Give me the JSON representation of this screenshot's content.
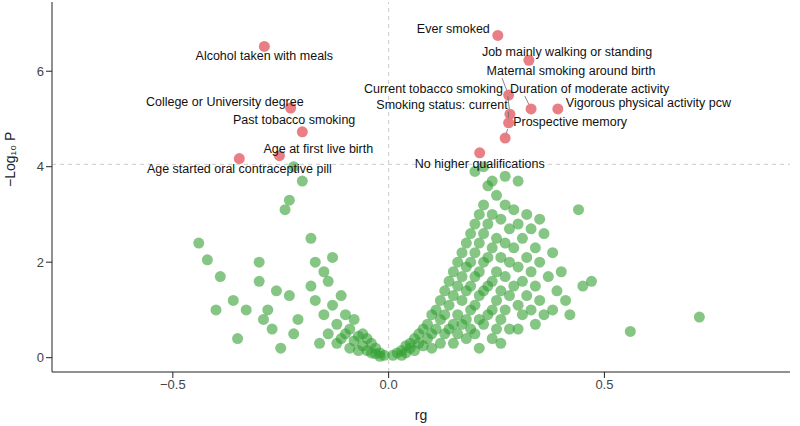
{
  "chart_data": {
    "type": "scatter",
    "xlabel": "rg",
    "ylabel": "−Log₁₀ P",
    "xlim": [
      -0.78,
      0.93
    ],
    "ylim": [
      -0.3,
      7.45
    ],
    "xticks": [
      {
        "value": -0.5,
        "label": "−0.5"
      },
      {
        "value": 0,
        "label": "0.0"
      },
      0.5
    ],
    "yticks": [
      0,
      2,
      4,
      6
    ],
    "hline": 4.05,
    "vline": 0,
    "marker": "circle",
    "series": [
      {
        "color": "#33a033",
        "points": [
          [
            -0.44,
            2.4
          ],
          [
            -0.42,
            2.05
          ],
          [
            -0.39,
            1.7
          ],
          [
            -0.4,
            1.0
          ],
          [
            -0.36,
            1.2
          ],
          [
            -0.35,
            0.4
          ],
          [
            -0.33,
            1.0
          ],
          [
            -0.3,
            2.0
          ],
          [
            -0.3,
            1.6
          ],
          [
            -0.29,
            0.8
          ],
          [
            -0.28,
            1.0
          ],
          [
            -0.27,
            0.6
          ],
          [
            -0.26,
            1.4
          ],
          [
            -0.25,
            0.2
          ],
          [
            -0.24,
            3.1
          ],
          [
            -0.23,
            3.3
          ],
          [
            -0.23,
            1.3
          ],
          [
            -0.22,
            0.5
          ],
          [
            -0.21,
            0.8
          ],
          [
            -0.2,
            3.7
          ],
          [
            -0.22,
            4.0
          ],
          [
            -0.18,
            2.5
          ],
          [
            -0.18,
            1.5
          ],
          [
            -0.17,
            2.0
          ],
          [
            -0.17,
            1.2
          ],
          [
            -0.16,
            0.3
          ],
          [
            -0.15,
            1.8
          ],
          [
            -0.15,
            0.9
          ],
          [
            -0.14,
            1.6
          ],
          [
            -0.14,
            0.5
          ],
          [
            -0.13,
            2.1
          ],
          [
            -0.13,
            1.1
          ],
          [
            -0.12,
            0.7
          ],
          [
            -0.12,
            0.3
          ],
          [
            -0.11,
            1.3
          ],
          [
            -0.1,
            0.9
          ],
          [
            -0.1,
            0.5
          ],
          [
            -0.09,
            0.6
          ],
          [
            -0.08,
            0.35
          ],
          [
            -0.08,
            0.8
          ],
          [
            -0.07,
            0.45
          ],
          [
            -0.06,
            0.25
          ],
          [
            -0.05,
            0.4
          ],
          [
            -0.05,
            0.15
          ],
          [
            -0.04,
            0.3
          ],
          [
            -0.03,
            0.2
          ],
          [
            -0.03,
            0.08
          ],
          [
            -0.02,
            0.1
          ],
          [
            -0.01,
            0.05
          ],
          [
            -0.02,
            0.03
          ],
          [
            -0.06,
            0.5
          ],
          [
            -0.09,
            0.2
          ],
          [
            -0.11,
            0.4
          ],
          [
            -0.07,
            0.15
          ],
          [
            -0.04,
            0.1
          ],
          [
            0.01,
            0.05
          ],
          [
            0.02,
            0.1
          ],
          [
            0.03,
            0.15
          ],
          [
            0.03,
            0.05
          ],
          [
            0.04,
            0.25
          ],
          [
            0.04,
            0.1
          ],
          [
            0.05,
            0.3
          ],
          [
            0.05,
            0.2
          ],
          [
            0.06,
            0.4
          ],
          [
            0.06,
            0.15
          ],
          [
            0.07,
            0.5
          ],
          [
            0.07,
            0.3
          ],
          [
            0.08,
            0.6
          ],
          [
            0.08,
            0.25
          ],
          [
            0.09,
            0.7
          ],
          [
            0.09,
            0.4
          ],
          [
            0.1,
            0.9
          ],
          [
            0.1,
            0.5
          ],
          [
            0.1,
            0.2
          ],
          [
            0.11,
            1.0
          ],
          [
            0.11,
            0.6
          ],
          [
            0.12,
            1.2
          ],
          [
            0.12,
            0.8
          ],
          [
            0.12,
            0.3
          ],
          [
            0.13,
            1.4
          ],
          [
            0.13,
            0.9
          ],
          [
            0.13,
            0.5
          ],
          [
            0.14,
            1.6
          ],
          [
            0.14,
            1.1
          ],
          [
            0.14,
            0.6
          ],
          [
            0.15,
            1.8
          ],
          [
            0.15,
            1.3
          ],
          [
            0.15,
            0.7
          ],
          [
            0.15,
            0.3
          ],
          [
            0.16,
            2.0
          ],
          [
            0.16,
            1.5
          ],
          [
            0.16,
            0.9
          ],
          [
            0.16,
            0.5
          ],
          [
            0.17,
            2.2
          ],
          [
            0.17,
            1.7
          ],
          [
            0.17,
            1.2
          ],
          [
            0.17,
            0.7
          ],
          [
            0.18,
            2.4
          ],
          [
            0.18,
            1.9
          ],
          [
            0.18,
            1.4
          ],
          [
            0.18,
            0.8
          ],
          [
            0.18,
            0.4
          ],
          [
            0.19,
            2.6
          ],
          [
            0.19,
            2.0
          ],
          [
            0.19,
            1.5
          ],
          [
            0.19,
            1.0
          ],
          [
            0.19,
            0.6
          ],
          [
            0.2,
            2.8
          ],
          [
            0.2,
            2.2
          ],
          [
            0.2,
            1.7
          ],
          [
            0.2,
            1.1
          ],
          [
            0.2,
            0.5
          ],
          [
            0.21,
            3.0
          ],
          [
            0.21,
            2.4
          ],
          [
            0.21,
            1.8
          ],
          [
            0.21,
            1.3
          ],
          [
            0.21,
            0.8
          ],
          [
            0.22,
            3.2
          ],
          [
            0.22,
            2.6
          ],
          [
            0.22,
            2.0
          ],
          [
            0.22,
            1.4
          ],
          [
            0.22,
            0.7
          ],
          [
            0.23,
            3.6
          ],
          [
            0.23,
            2.8
          ],
          [
            0.23,
            2.1
          ],
          [
            0.23,
            1.5
          ],
          [
            0.23,
            0.9
          ],
          [
            0.24,
            3.0
          ],
          [
            0.24,
            2.3
          ],
          [
            0.24,
            1.6
          ],
          [
            0.24,
            1.0
          ],
          [
            0.24,
            0.4
          ],
          [
            0.25,
            3.4
          ],
          [
            0.25,
            2.5
          ],
          [
            0.25,
            1.8
          ],
          [
            0.25,
            1.2
          ],
          [
            0.25,
            0.6
          ],
          [
            0.26,
            2.9
          ],
          [
            0.26,
            2.1
          ],
          [
            0.26,
            1.4
          ],
          [
            0.26,
            0.8
          ],
          [
            0.27,
            3.2
          ],
          [
            0.27,
            2.4
          ],
          [
            0.27,
            1.7
          ],
          [
            0.27,
            1.0
          ],
          [
            0.28,
            2.7
          ],
          [
            0.28,
            2.0
          ],
          [
            0.28,
            1.3
          ],
          [
            0.28,
            0.6
          ],
          [
            0.29,
            3.1
          ],
          [
            0.29,
            2.3
          ],
          [
            0.29,
            1.5
          ],
          [
            0.3,
            3.7
          ],
          [
            0.3,
            2.8
          ],
          [
            0.3,
            1.9
          ],
          [
            0.3,
            1.1
          ],
          [
            0.31,
            2.5
          ],
          [
            0.31,
            1.6
          ],
          [
            0.31,
            0.9
          ],
          [
            0.32,
            3.0
          ],
          [
            0.32,
            2.1
          ],
          [
            0.32,
            1.3
          ],
          [
            0.33,
            2.7
          ],
          [
            0.33,
            1.8
          ],
          [
            0.33,
            1.0
          ],
          [
            0.34,
            2.3
          ],
          [
            0.34,
            1.5
          ],
          [
            0.35,
            2.9
          ],
          [
            0.35,
            2.0
          ],
          [
            0.35,
            1.2
          ],
          [
            0.36,
            2.6
          ],
          [
            0.36,
            0.9
          ],
          [
            0.37,
            1.7
          ],
          [
            0.38,
            2.2
          ],
          [
            0.38,
            1.0
          ],
          [
            0.39,
            1.4
          ],
          [
            0.4,
            1.8
          ],
          [
            0.41,
            1.2
          ],
          [
            0.42,
            0.9
          ],
          [
            0.44,
            3.1
          ],
          [
            0.45,
            1.5
          ],
          [
            0.47,
            1.6
          ],
          [
            0.56,
            0.55
          ],
          [
            0.72,
            0.85
          ],
          [
            0.22,
            4.0
          ],
          [
            0.27,
            3.8
          ],
          [
            0.2,
            3.9
          ],
          [
            0.3,
            0.6
          ],
          [
            0.34,
            0.7
          ],
          [
            0.26,
            0.3
          ],
          [
            0.21,
            0.2
          ],
          [
            0.24,
            3.7
          ]
        ]
      },
      {
        "color": "#e8777d",
        "points": [
          [
            -0.288,
            6.52
          ],
          [
            -0.227,
            5.23
          ],
          [
            -0.2,
            4.73
          ],
          [
            -0.253,
            4.23
          ],
          [
            -0.346,
            4.17
          ],
          [
            0.253,
            6.75
          ],
          [
            0.325,
            6.23
          ],
          [
            0.278,
            5.5
          ],
          [
            0.281,
            5.1
          ],
          [
            0.33,
            5.21
          ],
          [
            0.392,
            5.21
          ],
          [
            0.278,
            4.92
          ],
          [
            0.27,
            4.6
          ],
          [
            0.211,
            4.29
          ]
        ],
        "labels": [
          "Alcohol taken with meals",
          "College or University degree",
          "Past tobacco smoking",
          "Age at first live birth",
          "Age started oral contraceptive pill",
          "Ever smoked",
          "Job mainly walking or standing",
          "Maternal smoking around birth",
          "Current tobacco smoking",
          "Duration of moderate activity",
          "Vigorous physical activity pcw",
          "Smoking status: current",
          "Prospective memory",
          "No higher qualifications"
        ]
      }
    ]
  }
}
